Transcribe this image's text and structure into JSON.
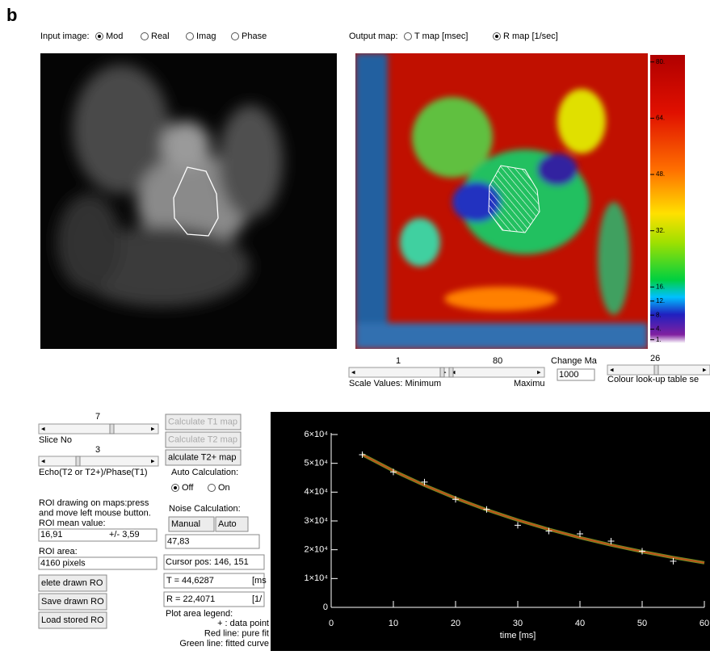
{
  "figure_label": "b",
  "input_image": {
    "label": "Input image:",
    "options": [
      "Mod",
      "Real",
      "Imag",
      "Phase"
    ],
    "selected": 0
  },
  "output_map": {
    "label": "Output map:",
    "options": [
      "T map [msec]",
      "R map [1/sec]"
    ],
    "selected": 1
  },
  "colorbar": {
    "lim": [
      0,
      82
    ],
    "ticks": [
      {
        "value": 80,
        "label": "80."
      },
      {
        "value": 64,
        "label": "64."
      },
      {
        "value": 48,
        "label": "48."
      },
      {
        "value": 32,
        "label": "32."
      },
      {
        "value": 16,
        "label": "16."
      },
      {
        "value": 12,
        "label": "12."
      },
      {
        "value": 8,
        "label": "8."
      },
      {
        "value": 4,
        "label": "4."
      },
      {
        "value": 1,
        "label": "1."
      }
    ]
  },
  "map_controls": {
    "minimum": 1,
    "maximum": 80,
    "scale_label": "Scale Values:  Minimum",
    "maximum_label": "Maximu",
    "change_label": "Change Ma",
    "change_value": 1000,
    "colour_value": 26,
    "colour_label": "Colour look-up table se"
  },
  "left_panel": {
    "slice_value": 7,
    "slice_label": "Slice No",
    "echo_value": 3,
    "echo_label": "Echo(T2 or T2+)/Phase(T1)",
    "roi_instructions": [
      "ROI drawing on maps:press",
      "and move left mouse button.",
      "ROI mean value:"
    ],
    "roi_mean": "16,91",
    "roi_sd": "+/- 3,59",
    "roi_area_label": "ROI area:",
    "roi_area": "4160 pixels",
    "buttons": [
      "elete drawn RO",
      "Save drawn RO",
      "Load stored RO"
    ]
  },
  "middle_panel": {
    "calc_buttons": [
      {
        "label": "Calculate T1 map",
        "enabled": false
      },
      {
        "label": "Calculate T2 map",
        "enabled": false
      },
      {
        "label": "alculate T2+ map",
        "enabled": true
      }
    ],
    "auto_label": "Auto Calculation:",
    "auto_options": [
      "Off",
      "On"
    ],
    "auto_selected": 0,
    "noise_label": "Noise Calculation:",
    "noise_buttons": [
      "Manual",
      "Auto"
    ],
    "noise_value": "47,83",
    "cursor": "Cursor pos: 146, 151",
    "t_value": "T = 44,6287",
    "t_unit": "[ms",
    "r_value": "R = 22,4071",
    "r_unit": "[1/",
    "legend_title": "Plot area legend:",
    "legend_lines": [
      "+ :  data point",
      "Red line:     pure fit",
      "Green line: fitted curve"
    ]
  },
  "plot": {
    "type": "scatter",
    "xlabel": "time [ms]",
    "xlim": [
      0,
      60
    ],
    "ylim": [
      0,
      60000
    ],
    "xticks": [
      0,
      10,
      20,
      30,
      40,
      50,
      60
    ],
    "yticks": [
      0,
      {
        "value": 10000,
        "label": "1×10⁴"
      },
      {
        "value": 20000,
        "label": "2×10⁴"
      },
      {
        "value": 30000,
        "label": "3×10⁴"
      },
      {
        "value": 40000,
        "label": "4×10⁴"
      },
      {
        "value": 50000,
        "label": "5×10⁴"
      },
      {
        "value": 60000,
        "label": "6×10⁴"
      }
    ],
    "points": {
      "color": "#ffffff",
      "x": [
        5,
        10,
        15,
        20,
        25,
        30,
        35,
        40,
        45,
        50,
        55
      ],
      "values": [
        53000,
        47000,
        43500,
        37500,
        34000,
        28500,
        26500,
        25500,
        23000,
        19500,
        16000
      ]
    },
    "fit": {
      "color": "#c0501a",
      "under_color": "#6b8e23",
      "x": [
        5,
        10,
        15,
        20,
        25,
        30,
        35,
        40,
        45,
        50,
        55,
        60
      ],
      "values": [
        53020,
        47400,
        42380,
        37890,
        33870,
        30280,
        27080,
        24210,
        21640,
        19350,
        17300,
        15470
      ]
    }
  }
}
